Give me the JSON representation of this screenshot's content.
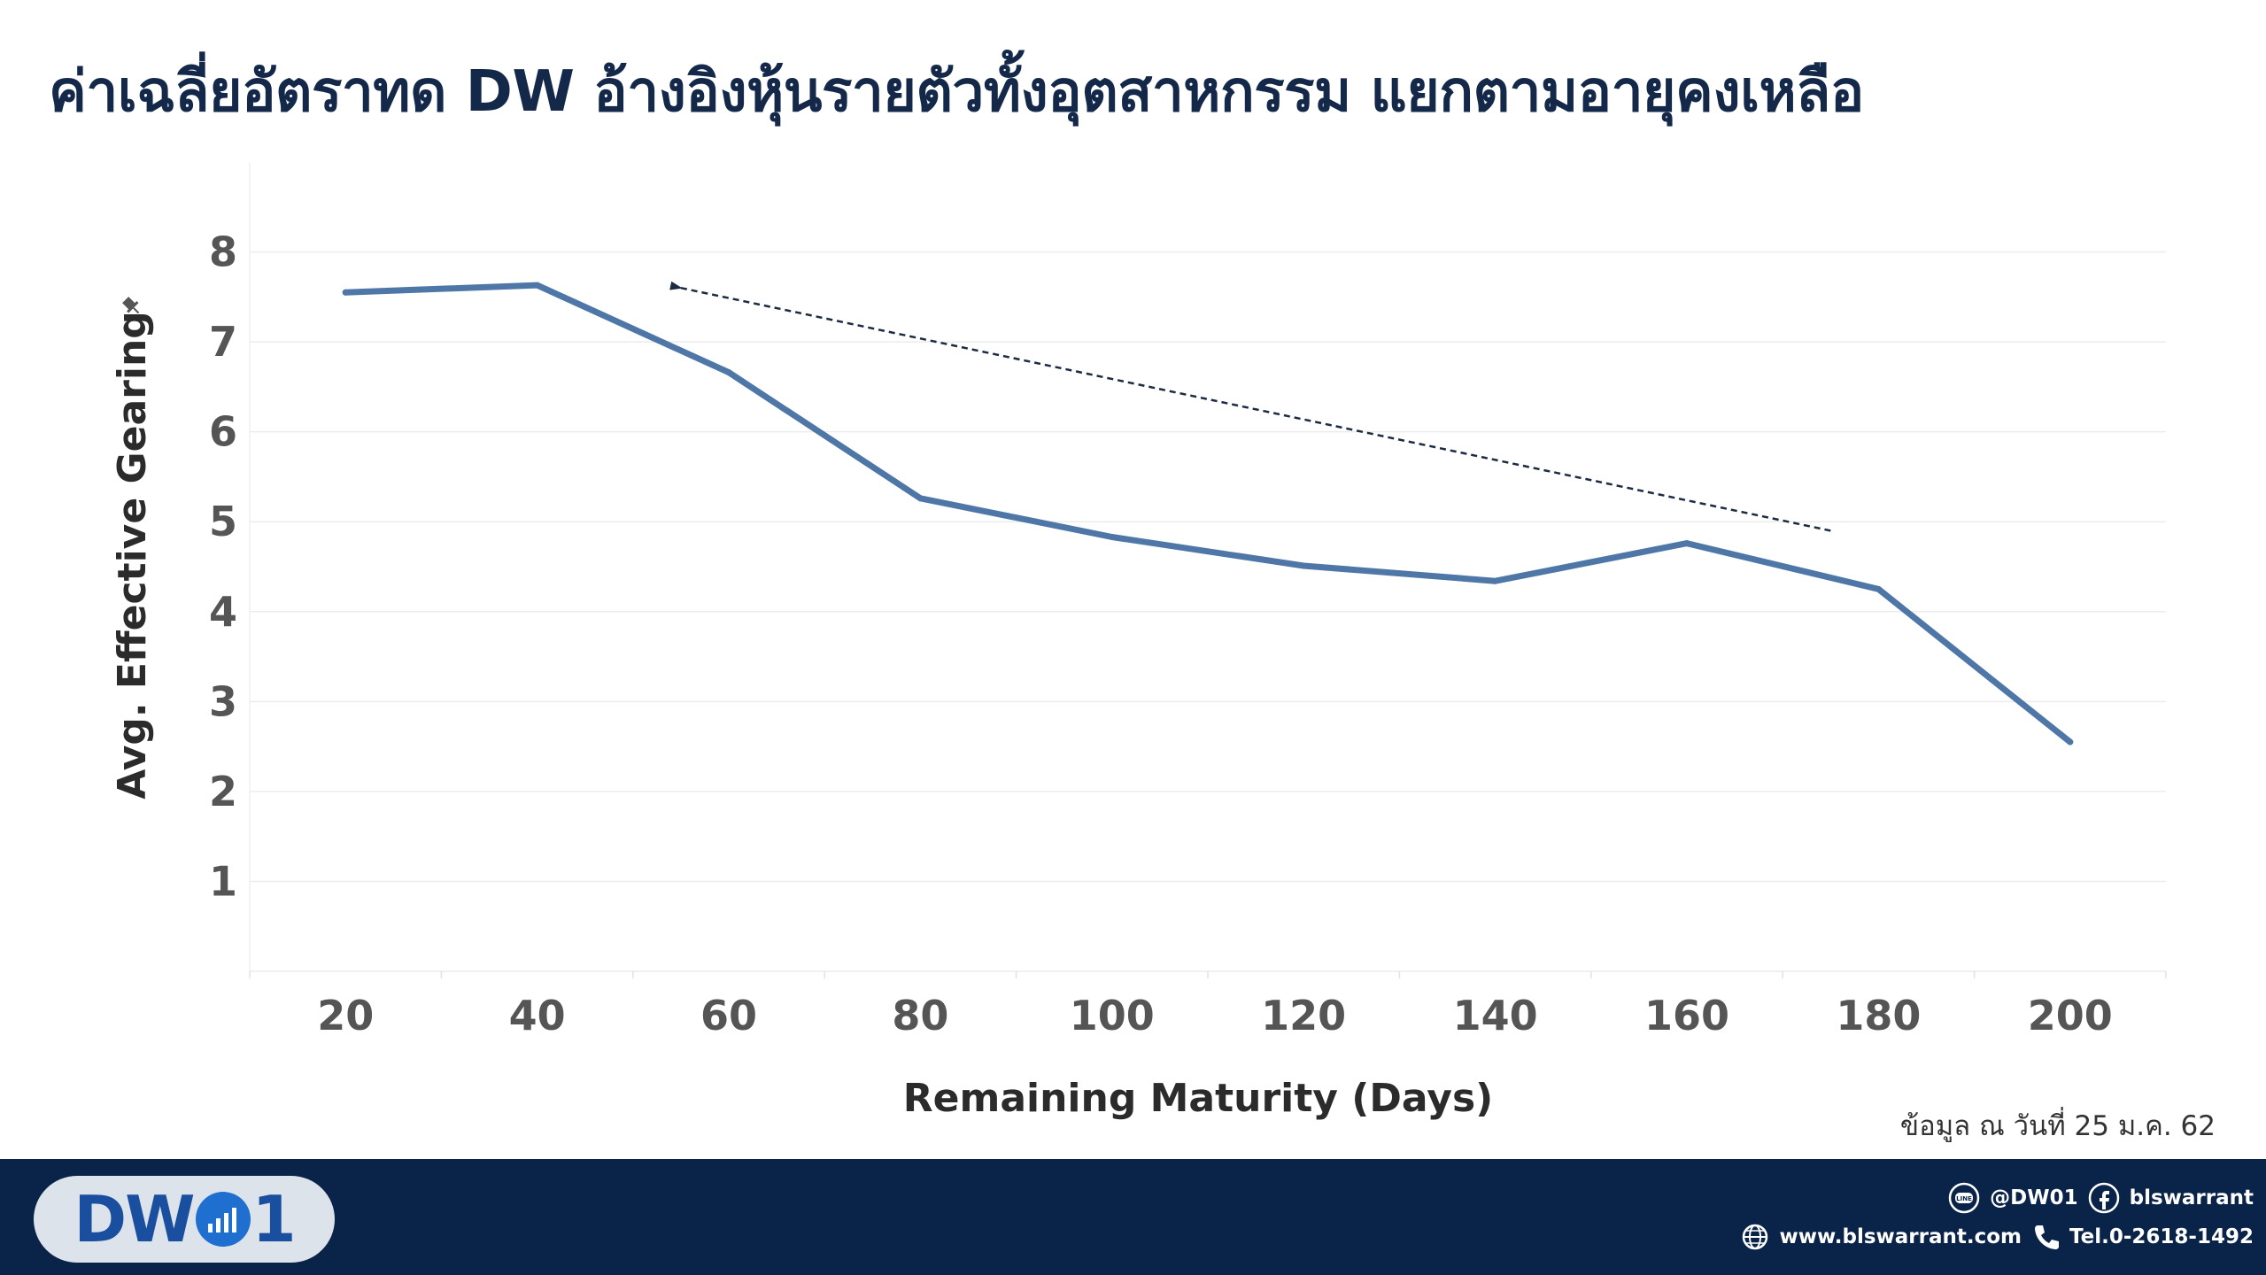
{
  "title": "ค่าเฉลี่ยอัตราทด DW อ้างอิงหุ้นรายตัวทั้งอุตสาหกรรม แยกตามอายุคงเหลือ",
  "source_note": "ข้อมูล ณ วันที่ 25 ม.ค. 62",
  "footer": {
    "logo_text_left": "DW",
    "logo_text_right": "1",
    "line_handle": "@DW01",
    "line_icon_label": "LINE",
    "facebook_handle": "blswarrant",
    "website": "www.blswarrant.com",
    "phone": "Tel.0-2618-1492"
  },
  "colors": {
    "line": "#4e77a8",
    "title": "#14294a",
    "footer_bg": "#0a2348",
    "logo_blue": "#1a4fa0"
  },
  "icons": [
    "line-icon",
    "facebook-icon",
    "globe-icon",
    "phone-icon",
    "pin-icon"
  ],
  "chart_data": {
    "type": "line",
    "x": [
      20,
      40,
      60,
      80,
      100,
      120,
      140,
      160,
      180,
      200
    ],
    "series": [
      {
        "values": [
          7.55,
          7.63,
          6.66,
          5.26,
          4.83,
          4.51,
          4.34,
          4.76,
          4.25,
          2.55
        ]
      }
    ],
    "xlabel": "Remaining Maturity (Days)",
    "ylabel": "Avg. Effective Gearing",
    "xlim": [
      10,
      210
    ],
    "ylim": [
      0,
      9
    ],
    "xticks": [
      20,
      40,
      60,
      80,
      100,
      120,
      140,
      160,
      180,
      200
    ],
    "yticks": [
      1,
      2,
      3,
      4,
      5,
      6,
      7,
      8
    ],
    "grid": true,
    "annotations": [
      {
        "type": "dashed-arrow",
        "from": [
          175,
          4.9
        ],
        "to": [
          55,
          7.6
        ]
      }
    ]
  }
}
